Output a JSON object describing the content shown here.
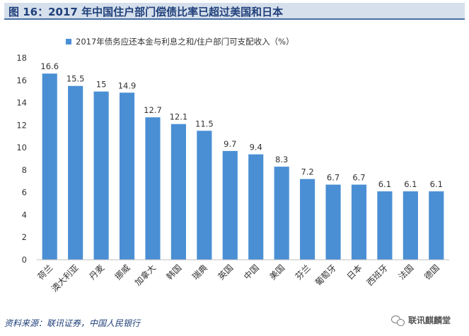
{
  "header": {
    "title": "图 16：2017 年中国住户部门偿债比率已超过美国和日本"
  },
  "chart_data": {
    "type": "bar",
    "title": "",
    "xlabel": "",
    "ylabel": "",
    "ylim": [
      0,
      18
    ],
    "yticks": [
      0,
      2,
      4,
      6,
      8,
      10,
      12,
      14,
      16,
      18
    ],
    "legend_position": "top",
    "grid": false,
    "categories": [
      "荷兰",
      "澳大利亚",
      "丹麦",
      "挪威",
      "加拿大",
      "韩国",
      "瑞典",
      "英国",
      "中国",
      "美国",
      "芬兰",
      "葡萄牙",
      "日本",
      "西班牙",
      "法国",
      "德国"
    ],
    "series": [
      {
        "name": "2017年债务应还本金与利息之和/住户部门可支配收入（%）",
        "values": [
          16.6,
          15.5,
          15,
          14.9,
          12.7,
          12.1,
          11.5,
          9.7,
          9.4,
          8.3,
          7.2,
          6.7,
          6.7,
          6.1,
          6.1,
          6.1
        ],
        "labels": [
          "16.6",
          "15.5",
          "15",
          "14.9",
          "12.7",
          "12.1",
          "11.5",
          "9.7",
          "9.4",
          "8.3",
          "7.2",
          "6.7",
          "6.7",
          "6.1",
          "6.1",
          "6.1"
        ],
        "color": "#4a8fd4"
      }
    ]
  },
  "footer": {
    "source": "资料来源：联讯证券，中国人民银行",
    "watermark": "联讯麒麟堂"
  }
}
